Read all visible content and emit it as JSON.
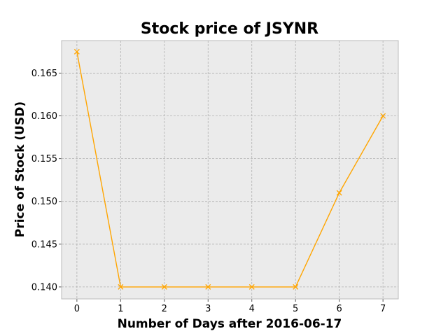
{
  "chart_data": {
    "type": "line",
    "title": "Stock price of JSYNR",
    "xlabel": "Number of Days after 2016-06-17",
    "ylabel": "Price of Stock (USD)",
    "x": [
      0,
      1,
      2,
      3,
      4,
      5,
      6,
      7
    ],
    "series": [
      {
        "values": [
          0.1675,
          0.14,
          0.14,
          0.14,
          0.14,
          0.14,
          0.151,
          0.16
        ],
        "color": "#FFA500",
        "marker": "x"
      }
    ],
    "xlim": [
      -0.35,
      7.35
    ],
    "ylim": [
      0.1386,
      0.1688
    ],
    "xticks": [
      0,
      1,
      2,
      3,
      4,
      5,
      6,
      7
    ],
    "xtick_labels": [
      "0",
      "1",
      "2",
      "3",
      "4",
      "5",
      "6",
      "7"
    ],
    "yticks": [
      0.14,
      0.145,
      0.15,
      0.155,
      0.16,
      0.165
    ],
    "ytick_labels": [
      "0.140",
      "0.145",
      "0.150",
      "0.155",
      "0.160",
      "0.165"
    ],
    "grid": true,
    "background": "#EBEBEB",
    "grid_color": "#B0B0B0"
  }
}
